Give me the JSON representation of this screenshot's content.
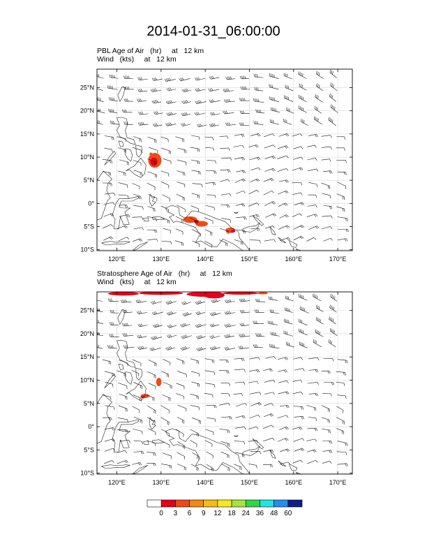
{
  "title": "2014-01-31_06:00:00",
  "panels": [
    {
      "id": "pbl",
      "line1": "PBL Age of Air   (hr)     at   12 km",
      "line2": "Wind   (kts)     at   12 km"
    },
    {
      "id": "strat",
      "line1": "Stratosphere Age of Air   (hr)     at   12 km",
      "line2": "Wind   (kts)     at   12 km"
    }
  ],
  "map": {
    "lon_range": [
      115.5,
      173.3
    ],
    "lat_range": [
      -10.2,
      29
    ],
    "lon_ticks": [
      "120°E",
      "130°E",
      "140°E",
      "150°E",
      "160°E",
      "170°E"
    ],
    "lon_tick_values": [
      120,
      130,
      140,
      150,
      160,
      170
    ],
    "lat_ticks": [
      "25°N",
      "20°N",
      "15°N",
      "10°N",
      "5°N",
      "0°",
      "5°S",
      "10°S"
    ],
    "lat_tick_values": [
      25,
      20,
      15,
      10,
      5,
      0,
      -5,
      -10
    ],
    "grid": true
  },
  "colorbar": {
    "labels": [
      "0",
      "3",
      "6",
      "9",
      "12",
      "18",
      "24",
      "36",
      "48",
      "60"
    ],
    "colors": [
      "#ffffff",
      "#e8001a",
      "#f04a14",
      "#f3880f",
      "#f6bb0c",
      "#f8ea1b",
      "#a8e33a",
      "#2fd646",
      "#22e3e6",
      "#1f8ff0",
      "#111e86"
    ]
  }
}
